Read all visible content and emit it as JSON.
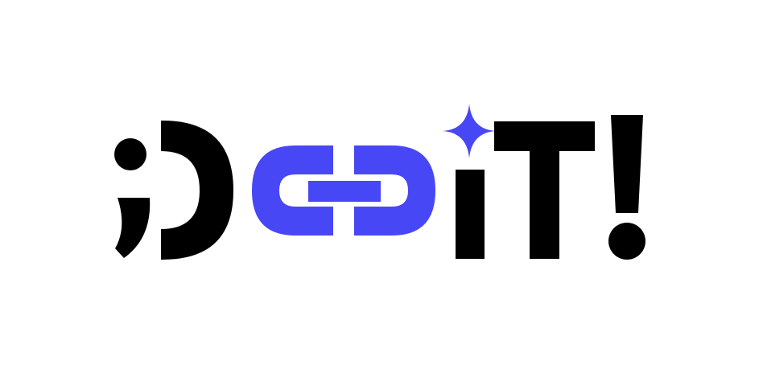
{
  "logo": {
    "wordmark": ";DoiT!",
    "colors": {
      "background": "#ffffff",
      "ink": "#000000",
      "accent": "#4747f5"
    },
    "icons": {
      "semicolon": "semicolon-icon",
      "d_letter": "letter-d-icon",
      "link": "chain-link-icon",
      "sparkle": "sparkle-star-icon",
      "i_letter": "letter-i-icon",
      "t_letter": "letter-t-icon",
      "exclamation": "exclamation-mark-icon"
    }
  }
}
